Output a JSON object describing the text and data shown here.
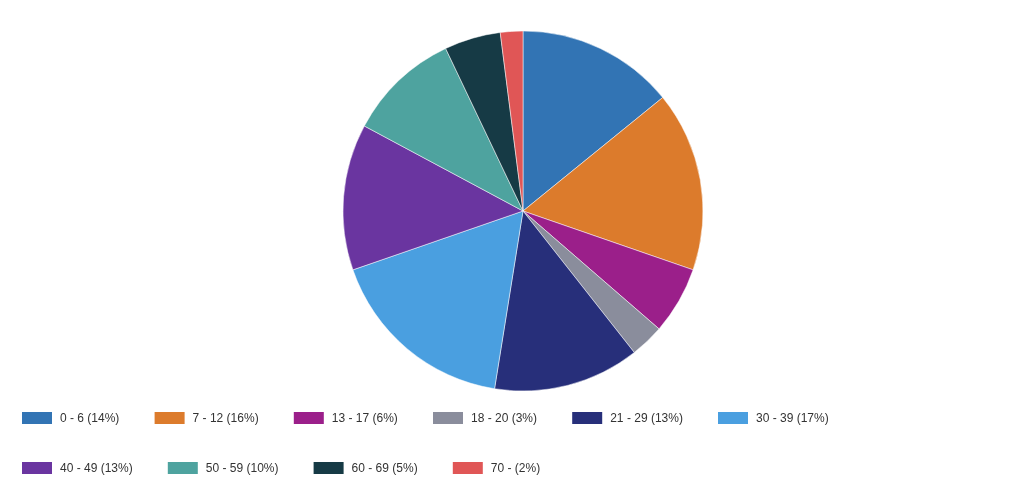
{
  "chart_data": {
    "type": "pie",
    "categories": [
      "0 - 6 (14%)",
      "7 - 12 (16%)",
      "13 - 17 (6%)",
      "18 - 20 (3%)",
      "21 - 29 (13%)",
      "30 - 39 (17%)",
      "40 - 49 (13%)",
      "50 - 59 (10%)",
      "60 - 69 (5%)",
      "70 - (2%)"
    ],
    "values": [
      14,
      16,
      6,
      3,
      13,
      17,
      13,
      10,
      5,
      2
    ],
    "colors": [
      "#3274b4",
      "#dc7b2c",
      "#9b1f8a",
      "#8a8d9c",
      "#272f7a",
      "#4a9fe0",
      "#6a35a0",
      "#4ea39f",
      "#163a45",
      "#e05656"
    ],
    "legend": "bottom"
  }
}
